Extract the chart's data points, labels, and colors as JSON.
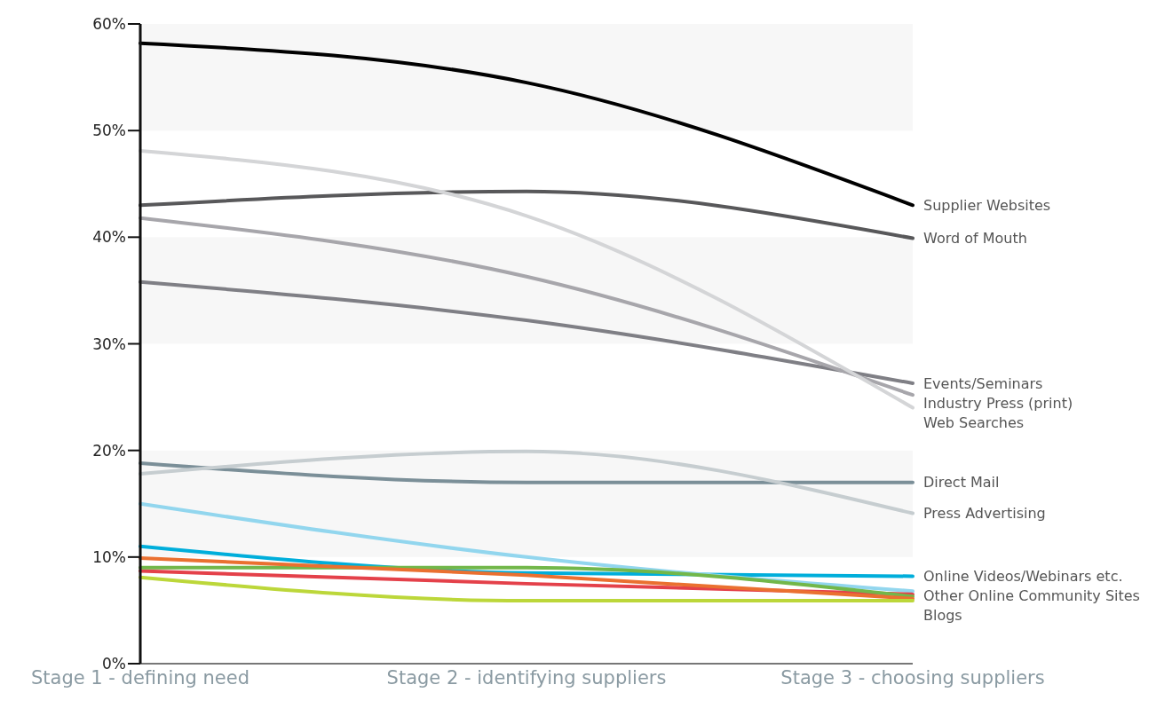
{
  "chart_data": {
    "type": "line",
    "categories": [
      "Stage 1 - defining need",
      "Stage 2 - identifying suppliers",
      "Stage 3 - choosing suppliers"
    ],
    "series": [
      {
        "name": "Supplier Websites",
        "color": "#000000",
        "values": [
          58.2,
          54.5,
          43.0
        ]
      },
      {
        "name": "Word of Mouth",
        "color": "#58585a",
        "values": [
          43.0,
          44.3,
          39.9
        ]
      },
      {
        "name": "Events/Seminars",
        "color": "#7f7f85",
        "values": [
          35.8,
          32.2,
          26.3
        ]
      },
      {
        "name": "Industry Press (print)",
        "color": "#a7a6ab",
        "values": [
          41.8,
          36.3,
          25.2
        ]
      },
      {
        "name": "Web Searches",
        "color": "#d4d5d7",
        "values": [
          48.1,
          42.0,
          24.0
        ]
      },
      {
        "name": "Direct Mail",
        "color": "#7b8f98",
        "values": [
          18.8,
          17.0,
          17.0
        ]
      },
      {
        "name": "Press Advertising",
        "color": "#c6cdd0",
        "values": [
          17.8,
          19.9,
          14.1
        ]
      },
      {
        "name": "Online Videos/Webinars etc.",
        "color": "#00aedb",
        "values": [
          11.0,
          8.5,
          8.2
        ]
      },
      {
        "name": "Other Online Community Sites",
        "color": "#92d6ee",
        "values": [
          15.0,
          10.0,
          6.8
        ]
      },
      {
        "color": "#e4414a",
        "values": [
          8.7,
          7.5,
          6.5
        ]
      },
      {
        "name": "Blogs",
        "color": "#72b74a",
        "values": [
          9.0,
          9.0,
          6.3
        ]
      },
      {
        "color": "#ea7030",
        "values": [
          9.9,
          8.3,
          6.1
        ]
      },
      {
        "color": "#bcd73a",
        "values": [
          8.1,
          5.9,
          5.9
        ]
      }
    ],
    "ylim": [
      0,
      60
    ],
    "yticks": [
      {
        "value": 0,
        "label": "0%"
      },
      {
        "value": 10,
        "label": "10%"
      },
      {
        "value": 20,
        "label": "20%"
      },
      {
        "value": 30,
        "label": "30%"
      },
      {
        "value": 40,
        "label": "40%"
      },
      {
        "value": 50,
        "label": "50%"
      },
      {
        "value": 60,
        "label": "60%"
      }
    ],
    "bands": [
      {
        "axis": "y",
        "from": 10,
        "to": 20,
        "color": "#f7f7f7"
      },
      {
        "axis": "y",
        "from": 30,
        "to": 40,
        "color": "#f7f7f7"
      },
      {
        "axis": "y",
        "from": 50,
        "to": 60,
        "color": "#f7f7f7"
      }
    ],
    "grid": false,
    "legend": "right",
    "marker": "none",
    "line_style": "solid"
  }
}
